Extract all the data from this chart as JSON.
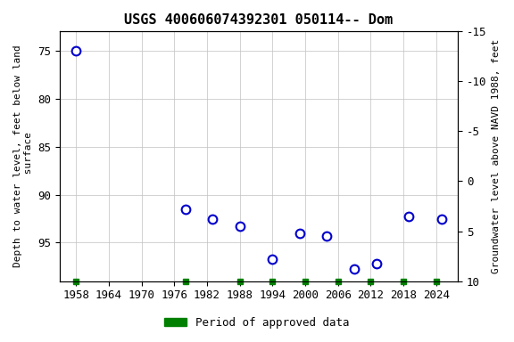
{
  "title": "USGS 400606074392301 050114-- Dom",
  "ylabel_left": "Depth to water level, feet below land\n surface",
  "ylabel_right": "Groundwater level above NAVD 1988, feet",
  "data_x": [
    1958,
    1978,
    1983,
    1988,
    1994,
    1999,
    2004,
    2009,
    2013,
    2019,
    2025
  ],
  "data_y": [
    75.0,
    91.5,
    92.5,
    93.3,
    96.7,
    94.0,
    94.3,
    97.7,
    97.2,
    92.3,
    92.5
  ],
  "ylim_left": [
    73,
    99
  ],
  "ylim_right_top": 10,
  "ylim_right_bottom": -15,
  "xlim": [
    1955,
    2028
  ],
  "xticks": [
    1958,
    1964,
    1970,
    1976,
    1982,
    1988,
    1994,
    2000,
    2006,
    2012,
    2018,
    2024
  ],
  "yticks_left": [
    75,
    80,
    85,
    90,
    95
  ],
  "yticks_right": [
    10,
    5,
    0,
    -5,
    -10,
    -15
  ],
  "point_color": "#0000cc",
  "point_facecolor": "#ffffff",
  "point_size": 7,
  "grid_color": "#c0c0c0",
  "legend_color": "#008000",
  "legend_label": "Period of approved data",
  "approved_x": [
    1958,
    1978,
    1988,
    1994,
    2000,
    2006,
    2012,
    2018,
    2024
  ],
  "bg_color": "#ffffff",
  "title_fontsize": 11,
  "label_fontsize": 8,
  "tick_fontsize": 9
}
